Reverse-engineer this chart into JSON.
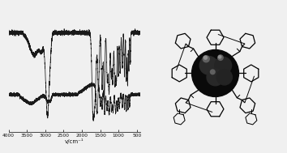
{
  "background_color": "#f0f0f0",
  "line_color": "#1a1a1a",
  "xlabel": "v/cm⁻¹",
  "xticks": [
    4000,
    3500,
    3000,
    2500,
    2000,
    1500,
    1000,
    500
  ],
  "sp1_base": 0.78,
  "sp2_base": 0.28,
  "mol_bg": "#f0f0f0"
}
